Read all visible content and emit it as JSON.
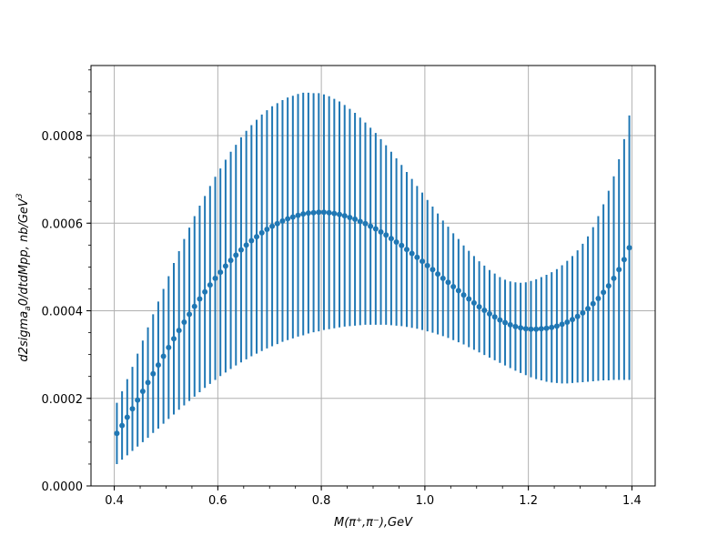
{
  "chart_data": {
    "type": "scatter",
    "title": "",
    "xlabel": "M(π⁺,π⁻),GeV",
    "ylabel_main": "d2sigma",
    "ylabel_sub": "a",
    "ylabel_mid": "0/dtdMpp, nb/GeV",
    "ylabel_sup": "3",
    "xlim": [
      0.355,
      1.445
    ],
    "ylim": [
      0.0,
      0.00096
    ],
    "grid": true,
    "legend": "none",
    "marker_color": "#1f77b4",
    "x_ticks": [
      0.4,
      0.6,
      0.8,
      1.0,
      1.2,
      1.4
    ],
    "x_tick_labels": [
      "0.4",
      "0.6",
      "0.8",
      "1.0",
      "1.2",
      "1.4"
    ],
    "y_ticks": [
      0.0,
      0.0002,
      0.0004,
      0.0006,
      0.0008
    ],
    "y_tick_labels": [
      "0.0000",
      "0.0002",
      "0.0004",
      "0.0006",
      "0.0008"
    ],
    "x": [
      0.405,
      0.415,
      0.425,
      0.435,
      0.445,
      0.455,
      0.465,
      0.475,
      0.485,
      0.495,
      0.505,
      0.515,
      0.525,
      0.535,
      0.545,
      0.555,
      0.565,
      0.575,
      0.585,
      0.595,
      0.605,
      0.615,
      0.625,
      0.635,
      0.645,
      0.655,
      0.665,
      0.675,
      0.685,
      0.695,
      0.705,
      0.715,
      0.725,
      0.735,
      0.745,
      0.755,
      0.765,
      0.775,
      0.785,
      0.795,
      0.805,
      0.815,
      0.825,
      0.835,
      0.845,
      0.855,
      0.865,
      0.875,
      0.885,
      0.895,
      0.905,
      0.915,
      0.925,
      0.935,
      0.945,
      0.955,
      0.965,
      0.975,
      0.985,
      0.995,
      1.005,
      1.015,
      1.025,
      1.035,
      1.045,
      1.055,
      1.065,
      1.075,
      1.085,
      1.095,
      1.105,
      1.115,
      1.125,
      1.135,
      1.145,
      1.155,
      1.165,
      1.175,
      1.185,
      1.195,
      1.205,
      1.215,
      1.225,
      1.235,
      1.245,
      1.255,
      1.265,
      1.275,
      1.285,
      1.295,
      1.305,
      1.315,
      1.325,
      1.335,
      1.345,
      1.355,
      1.365,
      1.375,
      1.385,
      1.395
    ],
    "y": [
      0.00012,
      0.000138,
      0.000157,
      0.000176,
      0.000196,
      0.000216,
      0.000236,
      0.000256,
      0.000276,
      0.000296,
      0.000316,
      0.000336,
      0.000355,
      0.000374,
      0.000392,
      0.00041,
      0.000427,
      0.000443,
      0.000459,
      0.000474,
      0.000488,
      0.000502,
      0.000515,
      0.000527,
      0.000539,
      0.00055,
      0.00056,
      0.000569,
      0.000578,
      0.000586,
      0.000593,
      0.000599,
      0.000605,
      0.00061,
      0.000614,
      0.000618,
      0.000621,
      0.000623,
      0.000624,
      0.000625,
      0.000625,
      0.000624,
      0.000622,
      0.00062,
      0.000617,
      0.000613,
      0.000609,
      0.000604,
      0.000599,
      0.000593,
      0.000587,
      0.00058,
      0.000573,
      0.000565,
      0.000557,
      0.000549,
      0.00054,
      0.000531,
      0.000522,
      0.000513,
      0.000503,
      0.000494,
      0.000484,
      0.000474,
      0.000465,
      0.000455,
      0.000446,
      0.000436,
      0.000427,
      0.000418,
      0.000409,
      0.000401,
      0.000393,
      0.000386,
      0.000379,
      0.000373,
      0.000368,
      0.000364,
      0.000361,
      0.000359,
      0.000358,
      0.000358,
      0.000359,
      0.00036,
      0.000362,
      0.000365,
      0.000369,
      0.000374,
      0.00038,
      0.000387,
      0.000395,
      0.000405,
      0.000416,
      0.000428,
      0.000442,
      0.000457,
      0.000474,
      0.000494,
      0.000517,
      0.000544
    ],
    "y_lower": [
      5e-05,
      6e-05,
      7e-05,
      8e-05,
      9e-05,
      0.0001,
      0.00011,
      0.000121,
      0.000131,
      0.000142,
      0.000153,
      0.000163,
      0.000174,
      0.000184,
      0.000194,
      0.000204,
      0.000214,
      0.000224,
      0.000233,
      0.000242,
      0.000251,
      0.000259,
      0.000267,
      0.000275,
      0.000282,
      0.000289,
      0.000296,
      0.000302,
      0.000308,
      0.000314,
      0.000319,
      0.000324,
      0.000329,
      0.000333,
      0.000337,
      0.000341,
      0.000344,
      0.000348,
      0.000351,
      0.000353,
      0.000356,
      0.000358,
      0.00036,
      0.000362,
      0.000364,
      0.000365,
      0.000366,
      0.000367,
      0.000368,
      0.000368,
      0.000368,
      0.000368,
      0.000368,
      0.000367,
      0.000366,
      0.000365,
      0.000363,
      0.000361,
      0.000359,
      0.000356,
      0.000353,
      0.00035,
      0.000346,
      0.000342,
      0.000338,
      0.000333,
      0.000328,
      0.000323,
      0.000317,
      0.000311,
      0.000305,
      0.000299,
      0.000293,
      0.000287,
      0.000281,
      0.000275,
      0.000269,
      0.000263,
      0.000258,
      0.000253,
      0.000248,
      0.000244,
      0.000241,
      0.000238,
      0.000236,
      0.000235,
      0.000234,
      0.000234,
      0.000235,
      0.000236,
      0.000237,
      0.000238,
      0.000239,
      0.00024,
      0.000241,
      0.000241,
      0.000242,
      0.000242,
      0.000242,
      0.000242
    ],
    "y_upper": [
      0.00019,
      0.000216,
      0.000244,
      0.000272,
      0.000302,
      0.000332,
      0.000362,
      0.000392,
      0.000421,
      0.00045,
      0.000479,
      0.000509,
      0.000536,
      0.000564,
      0.00059,
      0.000616,
      0.00064,
      0.000662,
      0.000685,
      0.000706,
      0.000725,
      0.000745,
      0.000763,
      0.000779,
      0.000796,
      0.000811,
      0.000824,
      0.000836,
      0.000848,
      0.000858,
      0.000867,
      0.000874,
      0.000881,
      0.000887,
      0.000891,
      0.000895,
      0.000898,
      0.000898,
      0.000897,
      0.000897,
      0.000894,
      0.00089,
      0.000884,
      0.000878,
      0.00087,
      0.000861,
      0.000852,
      0.000841,
      0.00083,
      0.000818,
      0.000806,
      0.000792,
      0.000778,
      0.000763,
      0.000748,
      0.000733,
      0.000717,
      0.000701,
      0.000685,
      0.00067,
      0.000653,
      0.000638,
      0.000622,
      0.000606,
      0.000592,
      0.000577,
      0.000564,
      0.000549,
      0.000537,
      0.000525,
      0.000513,
      0.000503,
      0.000493,
      0.000485,
      0.000477,
      0.000471,
      0.000467,
      0.000465,
      0.000464,
      0.000465,
      0.000468,
      0.000472,
      0.000477,
      0.000482,
      0.000488,
      0.000495,
      0.000504,
      0.000514,
      0.000525,
      0.000538,
      0.000553,
      0.00057,
      0.000591,
      0.000616,
      0.000643,
      0.000674,
      0.000707,
      0.000746,
      0.000792,
      0.000846
    ]
  }
}
